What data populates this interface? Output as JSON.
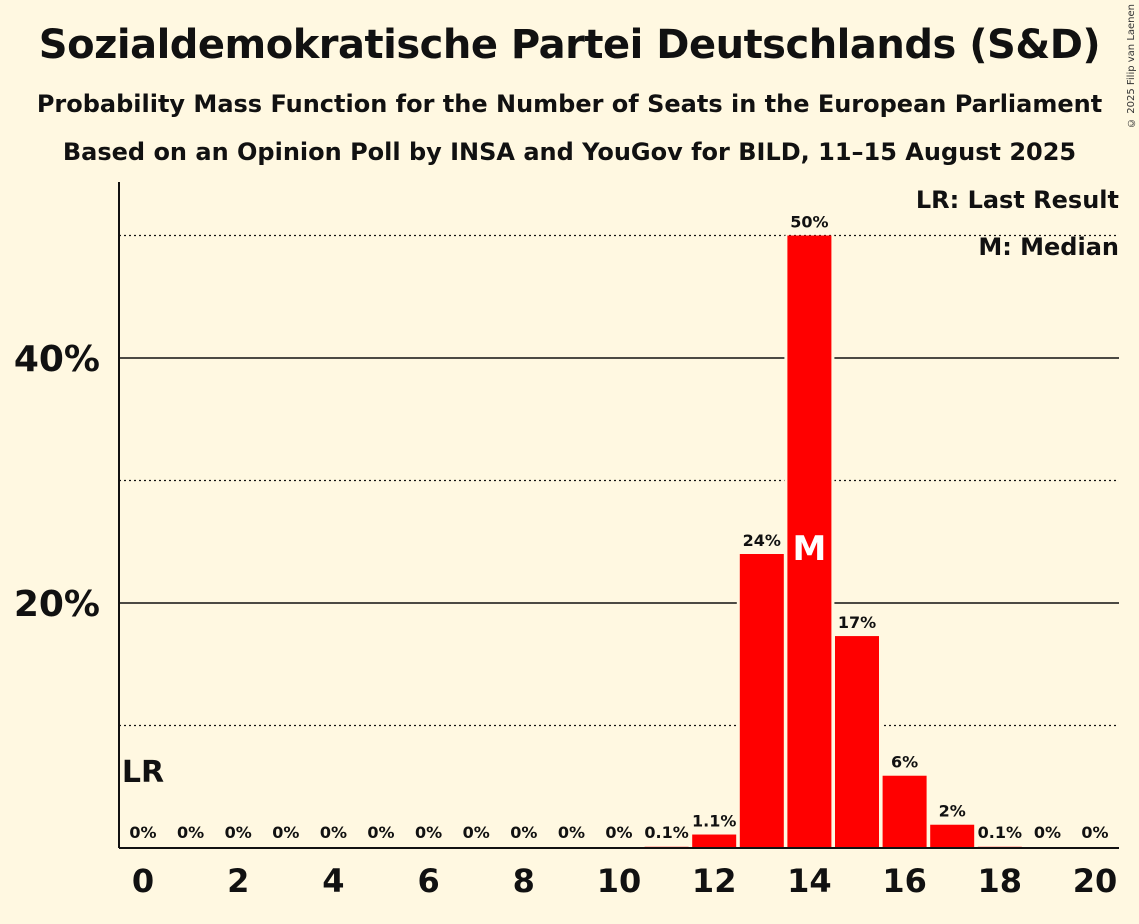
{
  "title": "Sozialdemokratische Partei Deutschlands (S&D)",
  "subtitle1": "Probability Mass Function for the Number of Seats in the European Parliament",
  "subtitle2": "Based on an Opinion Poll by INSA and YouGov for BILD, 11–15 August 2025",
  "copyright": "© 2025 Filip van Laenen",
  "legend": {
    "last_result": "LR: Last Result",
    "median": "M: Median"
  },
  "colors": {
    "bar": "#ff0000",
    "background": "#fff8e1"
  },
  "chart_data": {
    "type": "bar",
    "categories": [
      0,
      1,
      2,
      3,
      4,
      5,
      6,
      7,
      8,
      9,
      10,
      11,
      12,
      13,
      14,
      15,
      16,
      17,
      18,
      19,
      20
    ],
    "values": [
      0,
      0,
      0,
      0,
      0,
      0,
      0,
      0,
      0,
      0,
      0,
      0.1,
      1.1,
      24,
      50,
      17.3,
      5.9,
      1.9,
      0.1,
      0,
      0
    ],
    "labels": [
      "0%",
      "0%",
      "0%",
      "0%",
      "0%",
      "0%",
      "0%",
      "0%",
      "0%",
      "0%",
      "0%",
      "0.1%",
      "1.1%",
      "24%",
      "50%",
      "17%",
      "6%",
      "2%",
      "0.1%",
      "0%",
      "0%"
    ],
    "xticks": [
      0,
      2,
      4,
      6,
      8,
      10,
      12,
      14,
      16,
      18,
      20
    ],
    "yticks": [
      {
        "value": 20,
        "label": "20%"
      },
      {
        "value": 40,
        "label": "40%"
      }
    ],
    "dotted_gridlines": [
      10,
      30,
      50
    ],
    "ylim": [
      0,
      54
    ],
    "last_result": {
      "seat": 0,
      "label": "LR"
    },
    "median": {
      "seat": 14,
      "label": "M"
    }
  }
}
